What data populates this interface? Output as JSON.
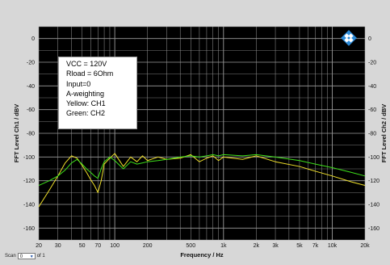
{
  "chart_data": {
    "type": "line",
    "xlabel": "Frequency / Hz",
    "ylabel_left": "FFT Level Ch1 / dBV",
    "ylabel_right": "FFT Level Ch2 / dBV",
    "x_scale": "log",
    "xlim": [
      20,
      20000
    ],
    "ylim": [
      -170,
      10
    ],
    "x_ticks": [
      20,
      30,
      50,
      70,
      100,
      200,
      500,
      1000,
      2000,
      3000,
      5000,
      7000,
      10000,
      20000
    ],
    "x_tick_labels": [
      "20",
      "30",
      "50",
      "70",
      "100",
      "200",
      "500",
      "1k",
      "2k",
      "3k",
      "5k",
      "7k",
      "10k",
      "20k"
    ],
    "y_ticks": [
      0,
      -20,
      -40,
      -60,
      -80,
      -100,
      -120,
      -140,
      -160
    ],
    "grid": true,
    "series": [
      {
        "name": "CH1",
        "color": "#f0e02a",
        "x": [
          20,
          25,
          30,
          35,
          40,
          45,
          50,
          55,
          60,
          65,
          70,
          75,
          80,
          90,
          100,
          120,
          140,
          160,
          180,
          200,
          250,
          300,
          400,
          500,
          600,
          700,
          800,
          900,
          1000,
          1500,
          2000,
          3000,
          5000,
          7000,
          10000,
          15000,
          20000
        ],
        "values": [
          -142,
          -128,
          -116,
          -105,
          -99,
          -101,
          -107,
          -113,
          -119,
          -124,
          -130,
          -120,
          -106,
          -101,
          -97,
          -108,
          -100,
          -104,
          -99,
          -103,
          -100,
          -102,
          -101,
          -98,
          -104,
          -101,
          -99,
          -103,
          -100,
          -102,
          -99,
          -104,
          -108,
          -112,
          -116,
          -121,
          -124
        ]
      },
      {
        "name": "CH2",
        "color": "#3ee01a",
        "x": [
          20,
          25,
          30,
          35,
          40,
          45,
          50,
          55,
          60,
          65,
          70,
          75,
          80,
          90,
          100,
          120,
          140,
          160,
          180,
          200,
          250,
          300,
          400,
          500,
          600,
          700,
          800,
          900,
          1000,
          1500,
          2000,
          3000,
          5000,
          7000,
          10000,
          15000,
          20000
        ],
        "values": [
          -124,
          -120,
          -116,
          -111,
          -105,
          -102,
          -106,
          -110,
          -113,
          -116,
          -118,
          -110,
          -104,
          -100,
          -103,
          -110,
          -104,
          -106,
          -105,
          -104,
          -103,
          -102,
          -100,
          -99,
          -100,
          -99,
          -98,
          -99,
          -98,
          -99,
          -98,
          -100,
          -103,
          -106,
          -109,
          -113,
          -116
        ]
      }
    ]
  },
  "legend_lines": [
    "VCC = 120V",
    "Rload = 6Ohm",
    "Input=0",
    "A-weighting",
    "Yellow: CH1",
    "Green: CH2"
  ],
  "scan": {
    "label": "Scan",
    "value": "0",
    "suffix": "of 1"
  },
  "colors": {
    "plot_bg": "#000000",
    "grid": "#9a9a9a",
    "frame": "#d7d7d7",
    "logo": "#2a8ad8"
  }
}
